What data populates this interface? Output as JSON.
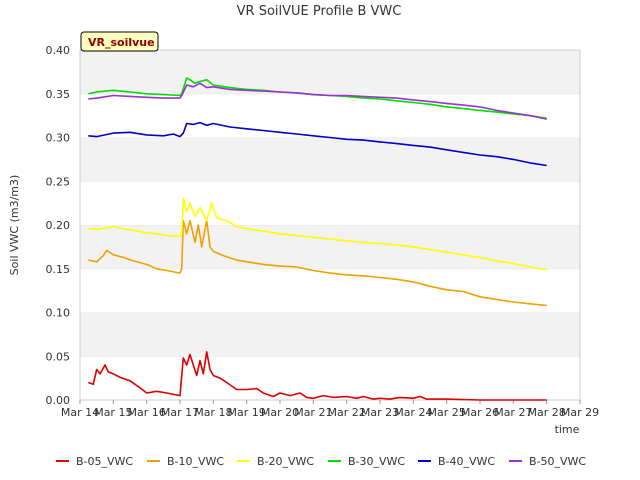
{
  "chart_data": {
    "type": "line",
    "title": "VR SoilVUE Profile B VWC",
    "xlabel": "time",
    "ylabel": "Soil VWC (m3/m3)",
    "tag": "VR_soilvue",
    "xlim": [
      14,
      29
    ],
    "ylim": [
      0,
      0.4
    ],
    "x_ticks": [
      "Mar 14",
      "Mar 15",
      "Mar 16",
      "Mar 17",
      "Mar 18",
      "Mar 19",
      "Mar 20",
      "Mar 21",
      "Mar 22",
      "Mar 23",
      "Mar 24",
      "Mar 25",
      "Mar 26",
      "Mar 27",
      "Mar 28",
      "Mar 29"
    ],
    "y_ticks": [
      "0.00",
      "0.05",
      "0.10",
      "0.15",
      "0.20",
      "0.25",
      "0.30",
      "0.35",
      "0.40"
    ],
    "grid": "horizontal alternating bands",
    "legend_position": "bottom",
    "series": [
      {
        "name": "B-05_VWC",
        "color": "#dd0000",
        "x": [
          14.25,
          14.4,
          14.5,
          14.6,
          14.75,
          14.85,
          15.0,
          15.2,
          15.5,
          15.8,
          16.0,
          16.3,
          16.6,
          17.0,
          17.1,
          17.2,
          17.3,
          17.4,
          17.5,
          17.6,
          17.7,
          17.8,
          17.9,
          18.0,
          18.2,
          18.4,
          18.7,
          19.0,
          19.3,
          19.5,
          19.8,
          20.0,
          20.3,
          20.6,
          20.8,
          21.0,
          21.3,
          21.6,
          22.0,
          22.3,
          22.5,
          22.8,
          23.0,
          23.3,
          23.6,
          24.0,
          24.2,
          24.4,
          25.0,
          26.0,
          27.0,
          28.0
        ],
        "y": [
          0.02,
          0.018,
          0.035,
          0.03,
          0.04,
          0.032,
          0.03,
          0.026,
          0.022,
          0.014,
          0.008,
          0.01,
          0.008,
          0.005,
          0.048,
          0.04,
          0.052,
          0.04,
          0.028,
          0.045,
          0.03,
          0.055,
          0.035,
          0.028,
          0.025,
          0.02,
          0.012,
          0.012,
          0.013,
          0.008,
          0.004,
          0.008,
          0.005,
          0.008,
          0.003,
          0.002,
          0.005,
          0.003,
          0.004,
          0.002,
          0.004,
          0.001,
          0.002,
          0.001,
          0.003,
          0.002,
          0.004,
          0.001,
          0.001,
          0.0,
          0.0,
          0.0
        ]
      },
      {
        "name": "B-10_VWC",
        "color": "#f0a000",
        "x": [
          14.25,
          14.5,
          14.7,
          14.8,
          15.0,
          15.3,
          15.6,
          16.0,
          16.3,
          16.6,
          17.0,
          17.05,
          17.1,
          17.2,
          17.3,
          17.45,
          17.55,
          17.65,
          17.8,
          17.9,
          18.0,
          18.3,
          18.7,
          19.0,
          19.5,
          20.0,
          20.5,
          21.0,
          21.5,
          22.0,
          22.5,
          23.0,
          23.5,
          24.0,
          24.5,
          25.0,
          25.5,
          26.0,
          26.5,
          27.0,
          27.5,
          28.0
        ],
        "y": [
          0.16,
          0.158,
          0.165,
          0.171,
          0.166,
          0.163,
          0.159,
          0.155,
          0.15,
          0.148,
          0.145,
          0.15,
          0.205,
          0.19,
          0.205,
          0.18,
          0.2,
          0.175,
          0.205,
          0.175,
          0.17,
          0.165,
          0.16,
          0.158,
          0.155,
          0.153,
          0.152,
          0.148,
          0.145,
          0.143,
          0.142,
          0.14,
          0.138,
          0.135,
          0.13,
          0.126,
          0.124,
          0.118,
          0.115,
          0.112,
          0.11,
          0.108
        ]
      },
      {
        "name": "B-20_VWC",
        "color": "#ffff00",
        "x": [
          14.25,
          14.5,
          15.0,
          15.3,
          15.6,
          16.0,
          16.3,
          16.6,
          17.0,
          17.05,
          17.1,
          17.2,
          17.3,
          17.45,
          17.6,
          17.8,
          17.95,
          18.1,
          18.4,
          18.7,
          19.0,
          19.5,
          20.0,
          20.5,
          21.0,
          21.5,
          22.0,
          22.5,
          23.0,
          23.5,
          24.0,
          24.5,
          25.0,
          25.5,
          26.0,
          26.5,
          27.0,
          27.5,
          28.0
        ],
        "y": [
          0.196,
          0.195,
          0.198,
          0.196,
          0.194,
          0.191,
          0.19,
          0.188,
          0.187,
          0.19,
          0.23,
          0.215,
          0.225,
          0.21,
          0.22,
          0.205,
          0.225,
          0.208,
          0.205,
          0.198,
          0.196,
          0.193,
          0.19,
          0.188,
          0.186,
          0.184,
          0.182,
          0.18,
          0.179,
          0.177,
          0.175,
          0.172,
          0.169,
          0.166,
          0.163,
          0.159,
          0.156,
          0.152,
          0.149
        ]
      },
      {
        "name": "B-30_VWC",
        "color": "#00dd00",
        "x": [
          14.25,
          14.5,
          15.0,
          15.5,
          16.0,
          16.5,
          17.0,
          17.05,
          17.2,
          17.3,
          17.45,
          17.6,
          17.8,
          18.0,
          18.5,
          19.0,
          19.5,
          20.0,
          20.5,
          21.0,
          21.5,
          22.0,
          22.5,
          23.0,
          23.5,
          24.0,
          24.5,
          25.0,
          25.5,
          26.0,
          26.5,
          27.0,
          27.5,
          28.0
        ],
        "y": [
          0.35,
          0.352,
          0.354,
          0.352,
          0.35,
          0.349,
          0.348,
          0.35,
          0.368,
          0.366,
          0.362,
          0.364,
          0.366,
          0.36,
          0.357,
          0.355,
          0.354,
          0.352,
          0.351,
          0.349,
          0.348,
          0.347,
          0.345,
          0.344,
          0.342,
          0.34,
          0.338,
          0.335,
          0.333,
          0.331,
          0.329,
          0.327,
          0.325,
          0.322
        ]
      },
      {
        "name": "B-40_VWC",
        "color": "#0000cc",
        "x": [
          14.25,
          14.5,
          15.0,
          15.5,
          16.0,
          16.5,
          16.8,
          17.0,
          17.1,
          17.2,
          17.4,
          17.6,
          17.8,
          18.0,
          18.5,
          19.0,
          19.5,
          20.0,
          20.5,
          21.0,
          21.5,
          22.0,
          22.5,
          23.0,
          23.5,
          24.0,
          24.5,
          25.0,
          25.5,
          26.0,
          26.5,
          27.0,
          27.5,
          28.0
        ],
        "y": [
          0.302,
          0.301,
          0.305,
          0.306,
          0.303,
          0.302,
          0.304,
          0.301,
          0.305,
          0.316,
          0.315,
          0.317,
          0.314,
          0.316,
          0.312,
          0.31,
          0.308,
          0.306,
          0.304,
          0.302,
          0.3,
          0.298,
          0.297,
          0.295,
          0.293,
          0.291,
          0.289,
          0.286,
          0.283,
          0.28,
          0.278,
          0.275,
          0.271,
          0.268
        ]
      },
      {
        "name": "B-50_VWC",
        "color": "#9933cc",
        "x": [
          14.25,
          14.5,
          15.0,
          15.5,
          16.0,
          16.5,
          17.0,
          17.05,
          17.2,
          17.4,
          17.6,
          17.8,
          18.0,
          18.5,
          19.0,
          19.5,
          20.0,
          20.5,
          21.0,
          21.5,
          22.0,
          22.5,
          23.0,
          23.5,
          24.0,
          24.5,
          25.0,
          25.5,
          26.0,
          26.5,
          27.0,
          27.5,
          28.0
        ],
        "y": [
          0.344,
          0.345,
          0.348,
          0.347,
          0.346,
          0.345,
          0.345,
          0.348,
          0.36,
          0.358,
          0.362,
          0.357,
          0.358,
          0.355,
          0.354,
          0.353,
          0.352,
          0.351,
          0.349,
          0.348,
          0.348,
          0.347,
          0.346,
          0.345,
          0.343,
          0.341,
          0.339,
          0.337,
          0.335,
          0.331,
          0.328,
          0.325,
          0.321
        ]
      }
    ]
  }
}
